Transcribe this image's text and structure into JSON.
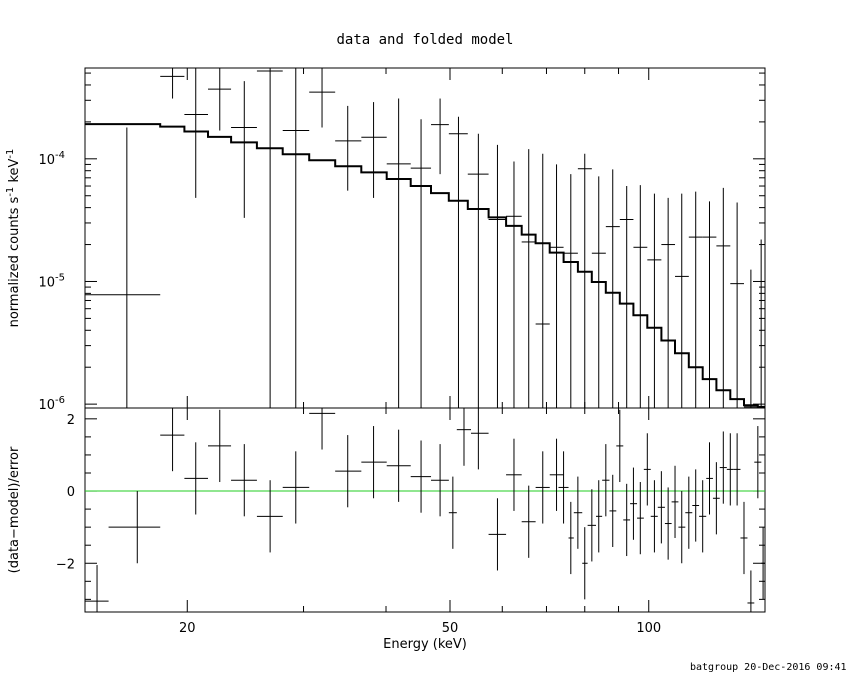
{
  "chart_data": [
    {
      "type": "scatter",
      "title": "data and folded model",
      "xlabel": "",
      "ylabel": "normalized counts s",
      "ylabel_sup1": "-1",
      "ylabel_mid": " keV",
      "ylabel_sup2": "-1",
      "xscale": "log",
      "yscale": "log",
      "xlim": [
        14,
        150
      ],
      "ylim": [
        9.3e-07,
        0.00055
      ],
      "yticks": [
        {
          "value": 0.0001,
          "label": "10",
          "exp": "-4"
        },
        {
          "value": 1e-05,
          "label": "10",
          "exp": "-5"
        },
        {
          "value": 1e-06,
          "label": "10",
          "exp": "-6"
        }
      ],
      "series": [
        {
          "role": "data",
          "points": [
            {
              "x": 16.2,
              "xlo": 14.0,
              "xhi": 18.2,
              "y": 7.8e-06,
              "ylo": 9.3e-07,
              "yhi": 0.00018
            },
            {
              "x": 19.0,
              "xlo": 18.2,
              "xhi": 19.8,
              "y": 0.00047,
              "ylo": 0.00031,
              "yhi": 0.00055
            },
            {
              "x": 20.6,
              "xlo": 19.8,
              "xhi": 21.5,
              "y": 0.00023,
              "ylo": 4.8e-05,
              "yhi": 0.00055
            },
            {
              "x": 22.4,
              "xlo": 21.5,
              "xhi": 23.3,
              "y": 0.00037,
              "ylo": 0.00017,
              "yhi": 0.00055
            },
            {
              "x": 24.4,
              "xlo": 23.3,
              "xhi": 25.5,
              "y": 0.00018,
              "ylo": 3.3e-05,
              "yhi": 0.00043
            },
            {
              "x": 26.7,
              "xlo": 25.5,
              "xhi": 27.9,
              "y": 0.00052,
              "ylo": 9.3e-07,
              "yhi": 0.00055
            },
            {
              "x": 29.2,
              "xlo": 27.9,
              "xhi": 30.6,
              "y": 0.00017,
              "ylo": 9.3e-07,
              "yhi": 0.00055
            },
            {
              "x": 32.0,
              "xlo": 30.6,
              "xhi": 33.5,
              "y": 0.00035,
              "ylo": 0.00018,
              "yhi": 0.00055
            },
            {
              "x": 35.0,
              "xlo": 33.5,
              "xhi": 36.7,
              "y": 0.00014,
              "ylo": 5.5e-05,
              "yhi": 0.00027
            },
            {
              "x": 38.3,
              "xlo": 36.7,
              "xhi": 40.1,
              "y": 0.00015,
              "ylo": 4.8e-05,
              "yhi": 0.00029
            },
            {
              "x": 41.8,
              "xlo": 40.1,
              "xhi": 43.6,
              "y": 9.1e-05,
              "ylo": 9.3e-07,
              "yhi": 0.00031
            },
            {
              "x": 45.2,
              "xlo": 43.6,
              "xhi": 46.8,
              "y": 8.4e-05,
              "ylo": 9.3e-07,
              "yhi": 0.00021
            },
            {
              "x": 48.3,
              "xlo": 46.8,
              "xhi": 49.8,
              "y": 0.00019,
              "ylo": 7.5e-05,
              "yhi": 0.00031
            },
            {
              "x": 51.5,
              "xlo": 49.8,
              "xhi": 53.2,
              "y": 0.00016,
              "ylo": 9.3e-07,
              "yhi": 0.00022
            },
            {
              "x": 55.2,
              "xlo": 53.2,
              "xhi": 57.2,
              "y": 7.5e-05,
              "ylo": 9.3e-07,
              "yhi": 0.00016
            },
            {
              "x": 59.0,
              "xlo": 57.2,
              "xhi": 60.8,
              "y": 3.2e-05,
              "ylo": 9.3e-07,
              "yhi": 0.00013
            },
            {
              "x": 62.5,
              "xlo": 60.8,
              "xhi": 64.2,
              "y": 3.4e-05,
              "ylo": 9.3e-07,
              "yhi": 9.5e-05
            },
            {
              "x": 65.8,
              "xlo": 64.2,
              "xhi": 67.4,
              "y": 2.1e-05,
              "ylo": 9.3e-07,
              "yhi": 0.00012
            },
            {
              "x": 69.1,
              "xlo": 67.4,
              "xhi": 70.8,
              "y": 4.5e-06,
              "ylo": 9.3e-07,
              "yhi": 0.00011
            },
            {
              "x": 72.5,
              "xlo": 70.8,
              "xhi": 74.3,
              "y": 1.9e-05,
              "ylo": 9.3e-07,
              "yhi": 9e-05
            },
            {
              "x": 76.2,
              "xlo": 74.3,
              "xhi": 78.1,
              "y": 1.7e-05,
              "ylo": 9.3e-07,
              "yhi": 7.5e-05
            },
            {
              "x": 80.0,
              "xlo": 78.1,
              "xhi": 82.0,
              "y": 8.3e-05,
              "ylo": 9.3e-07,
              "yhi": 0.00011
            },
            {
              "x": 84.0,
              "xlo": 82.0,
              "xhi": 86.1,
              "y": 1.7e-05,
              "ylo": 9.3e-07,
              "yhi": 7.2e-05
            },
            {
              "x": 88.2,
              "xlo": 86.1,
              "xhi": 90.4,
              "y": 2.8e-05,
              "ylo": 9.3e-07,
              "yhi": 8.2e-05
            },
            {
              "x": 92.6,
              "xlo": 90.4,
              "xhi": 94.8,
              "y": 3.2e-05,
              "ylo": 9.3e-07,
              "yhi": 6e-05
            },
            {
              "x": 97.1,
              "xlo": 94.8,
              "xhi": 99.5,
              "y": 1.9e-05,
              "ylo": 9.3e-07,
              "yhi": 6.1e-05
            },
            {
              "x": 102.0,
              "xlo": 99.5,
              "xhi": 104.5,
              "y": 1.5e-05,
              "ylo": 9.3e-07,
              "yhi": 5.2e-05
            },
            {
              "x": 107.0,
              "xlo": 104.5,
              "xhi": 109.6,
              "y": 2e-05,
              "ylo": 9.3e-07,
              "yhi": 4.8e-05
            },
            {
              "x": 112.2,
              "xlo": 109.6,
              "xhi": 115.0,
              "y": 1.1e-05,
              "ylo": 9.3e-07,
              "yhi": 5.2e-05
            },
            {
              "x": 117.8,
              "xlo": 115.0,
              "xhi": 120.7,
              "y": 2.3e-05,
              "ylo": 9.3e-07,
              "yhi": 5.4e-05
            },
            {
              "x": 123.6,
              "xlo": 120.7,
              "xhi": 126.6,
              "y": 2.3e-05,
              "ylo": 9.3e-07,
              "yhi": 4.5e-05
            },
            {
              "x": 129.7,
              "xlo": 126.6,
              "xhi": 132.9,
              "y": 1.95e-05,
              "ylo": 9.3e-07,
              "yhi": 5.8e-05
            },
            {
              "x": 136.1,
              "xlo": 132.9,
              "xhi": 139.4,
              "y": 9.6e-06,
              "ylo": 9.3e-07,
              "yhi": 4.4e-05
            },
            {
              "x": 142.8,
              "xlo": 139.4,
              "xhi": 146.3,
              "y": 9.5e-07,
              "ylo": 9.3e-07,
              "yhi": 1.25e-05
            },
            {
              "x": 148.0,
              "xlo": 146.3,
              "xhi": 150.0,
              "y": 9.5e-07,
              "ylo": 9.3e-07,
              "yhi": 2.2e-05
            }
          ]
        },
        {
          "role": "folded-model",
          "note": "stepped histogram",
          "edges": [
            14.0,
            18.2,
            19.8,
            21.5,
            23.3,
            25.5,
            27.9,
            30.6,
            33.5,
            36.7,
            40.1,
            43.6,
            46.8,
            49.8,
            53.2,
            57.2,
            60.8,
            64.2,
            67.4,
            70.8,
            74.3,
            78.1,
            82.0,
            86.1,
            90.4,
            94.8,
            99.5,
            104.5,
            109.6,
            115.0,
            120.7,
            126.6,
            132.9,
            139.4,
            146.3,
            150.0
          ],
          "values": [
            0.000192,
            0.000183,
            0.000167,
            0.000151,
            0.000136,
            0.000122,
            0.000109,
            9.75e-05,
            8.7e-05,
            7.75e-05,
            6.85e-05,
            6e-05,
            5.25e-05,
            4.55e-05,
            3.9e-05,
            3.33e-05,
            2.84e-05,
            2.41e-05,
            2.05e-05,
            1.72e-05,
            1.44e-05,
            1.2e-05,
            9.9e-06,
            8.1e-06,
            6.6e-06,
            5.3e-06,
            4.2e-06,
            3.3e-06,
            2.6e-06,
            2e-06,
            1.6e-06,
            1.3e-06,
            1.1e-06,
            9.8e-07,
            9.5e-07
          ]
        }
      ]
    },
    {
      "type": "scatter",
      "title": "",
      "xlabel": "Energy (keV)",
      "ylabel": "(data−model)/error",
      "xscale": "log",
      "yscale": "linear",
      "xlim": [
        14,
        150
      ],
      "ylim": [
        -3.35,
        2.3
      ],
      "xticks": [
        {
          "value": 20,
          "label": "20"
        },
        {
          "value": 50,
          "label": "50"
        },
        {
          "value": 100,
          "label": "100"
        }
      ],
      "yticks": [
        {
          "value": 2,
          "label": "2"
        },
        {
          "value": 0,
          "label": "0"
        },
        {
          "value": -2,
          "label": "−2"
        }
      ],
      "zero_line_color": "#22cc22",
      "series": [
        {
          "role": "residuals",
          "points": [
            {
              "x": 14.6,
              "xlo": 14.0,
              "xhi": 15.2,
              "y": -3.05,
              "ylo": -3.35,
              "yhi": -2.05
            },
            {
              "x": 16.8,
              "xlo": 15.2,
              "xhi": 18.2,
              "y": -1.0,
              "ylo": -2.0,
              "yhi": 0.0
            },
            {
              "x": 19.0,
              "xlo": 18.2,
              "xhi": 19.8,
              "y": 1.55,
              "ylo": 0.55,
              "yhi": 2.3
            },
            {
              "x": 20.6,
              "xlo": 19.8,
              "xhi": 21.5,
              "y": 0.35,
              "ylo": -0.65,
              "yhi": 1.35
            },
            {
              "x": 22.4,
              "xlo": 21.5,
              "xhi": 23.3,
              "y": 1.25,
              "ylo": 0.25,
              "yhi": 2.25
            },
            {
              "x": 24.4,
              "xlo": 23.3,
              "xhi": 25.5,
              "y": 0.3,
              "ylo": -0.7,
              "yhi": 1.3
            },
            {
              "x": 26.7,
              "xlo": 25.5,
              "xhi": 27.9,
              "y": -0.7,
              "ylo": -1.7,
              "yhi": 0.3
            },
            {
              "x": 29.2,
              "xlo": 27.9,
              "xhi": 30.6,
              "y": 0.1,
              "ylo": -0.9,
              "yhi": 1.1
            },
            {
              "x": 32.0,
              "xlo": 30.6,
              "xhi": 33.5,
              "y": 2.15,
              "ylo": 1.15,
              "yhi": 2.3
            },
            {
              "x": 35.0,
              "xlo": 33.5,
              "xhi": 36.7,
              "y": 0.55,
              "ylo": -0.45,
              "yhi": 1.55
            },
            {
              "x": 38.3,
              "xlo": 36.7,
              "xhi": 40.1,
              "y": 0.8,
              "ylo": -0.2,
              "yhi": 1.8
            },
            {
              "x": 41.8,
              "xlo": 40.1,
              "xhi": 43.6,
              "y": 0.7,
              "ylo": -0.3,
              "yhi": 1.7
            },
            {
              "x": 45.2,
              "xlo": 43.6,
              "xhi": 46.8,
              "y": 0.4,
              "ylo": -0.6,
              "yhi": 1.4
            },
            {
              "x": 48.3,
              "xlo": 46.8,
              "xhi": 49.8,
              "y": 0.3,
              "ylo": -0.7,
              "yhi": 1.3
            },
            {
              "x": 50.5,
              "xlo": 49.8,
              "xhi": 51.2,
              "y": -0.6,
              "ylo": -1.6,
              "yhi": 0.4
            },
            {
              "x": 52.5,
              "xlo": 51.2,
              "xhi": 53.8,
              "y": 1.7,
              "ylo": 0.7,
              "yhi": 2.3
            },
            {
              "x": 55.2,
              "xlo": 53.8,
              "xhi": 57.2,
              "y": 1.6,
              "ylo": 0.6,
              "yhi": 2.3
            },
            {
              "x": 59.0,
              "xlo": 57.2,
              "xhi": 60.8,
              "y": -1.2,
              "ylo": -2.2,
              "yhi": -0.2
            },
            {
              "x": 62.5,
              "xlo": 60.8,
              "xhi": 64.2,
              "y": 0.45,
              "ylo": -0.55,
              "yhi": 1.45
            },
            {
              "x": 65.8,
              "xlo": 64.2,
              "xhi": 67.4,
              "y": -0.85,
              "ylo": -1.85,
              "yhi": 0.15
            },
            {
              "x": 69.1,
              "xlo": 67.4,
              "xhi": 70.8,
              "y": 0.1,
              "ylo": -0.9,
              "yhi": 1.1
            },
            {
              "x": 72.5,
              "xlo": 70.8,
              "xhi": 74.3,
              "y": 0.45,
              "ylo": -0.55,
              "yhi": 1.45
            },
            {
              "x": 74.3,
              "xlo": 73.0,
              "xhi": 75.6,
              "y": 0.1,
              "ylo": -0.9,
              "yhi": 1.1
            },
            {
              "x": 76.2,
              "xlo": 75.6,
              "xhi": 77.0,
              "y": -1.3,
              "ylo": -2.3,
              "yhi": -0.3
            },
            {
              "x": 78.1,
              "xlo": 77.0,
              "xhi": 79.3,
              "y": -0.6,
              "ylo": -1.6,
              "yhi": 0.4
            },
            {
              "x": 80.0,
              "xlo": 79.3,
              "xhi": 80.8,
              "y": -2.0,
              "ylo": -3.0,
              "yhi": -1.0
            },
            {
              "x": 82.0,
              "xlo": 80.8,
              "xhi": 83.2,
              "y": -0.95,
              "ylo": -1.95,
              "yhi": 0.05
            },
            {
              "x": 84.0,
              "xlo": 83.2,
              "xhi": 85.0,
              "y": -0.7,
              "ylo": -1.7,
              "yhi": 0.3
            },
            {
              "x": 86.1,
              "xlo": 85.0,
              "xhi": 87.2,
              "y": 0.3,
              "ylo": -0.7,
              "yhi": 1.3
            },
            {
              "x": 88.2,
              "xlo": 87.2,
              "xhi": 89.3,
              "y": -0.55,
              "ylo": -1.55,
              "yhi": 0.45
            },
            {
              "x": 90.4,
              "xlo": 89.3,
              "xhi": 91.5,
              "y": 1.25,
              "ylo": 0.25,
              "yhi": 2.25
            },
            {
              "x": 92.6,
              "xlo": 91.5,
              "xhi": 93.7,
              "y": -0.8,
              "ylo": -1.8,
              "yhi": 0.2
            },
            {
              "x": 94.8,
              "xlo": 93.7,
              "xhi": 96.0,
              "y": -0.35,
              "ylo": -1.35,
              "yhi": 0.65
            },
            {
              "x": 97.1,
              "xlo": 96.0,
              "xhi": 98.3,
              "y": -0.75,
              "ylo": -1.75,
              "yhi": 0.25
            },
            {
              "x": 99.5,
              "xlo": 98.3,
              "xhi": 100.7,
              "y": 0.6,
              "ylo": -0.4,
              "yhi": 1.6
            },
            {
              "x": 102.0,
              "xlo": 100.7,
              "xhi": 103.2,
              "y": -0.7,
              "ylo": -1.7,
              "yhi": 0.3
            },
            {
              "x": 104.5,
              "xlo": 103.2,
              "xhi": 105.8,
              "y": -0.45,
              "ylo": -1.45,
              "yhi": 0.55
            },
            {
              "x": 107.0,
              "xlo": 105.8,
              "xhi": 108.3,
              "y": -0.9,
              "ylo": -1.9,
              "yhi": 0.1
            },
            {
              "x": 109.6,
              "xlo": 108.3,
              "xhi": 110.9,
              "y": -0.3,
              "ylo": -1.3,
              "yhi": 0.7
            },
            {
              "x": 112.2,
              "xlo": 110.9,
              "xhi": 113.6,
              "y": -1.0,
              "ylo": -2.0,
              "yhi": 0.0
            },
            {
              "x": 115.0,
              "xlo": 113.6,
              "xhi": 116.4,
              "y": -0.6,
              "ylo": -1.6,
              "yhi": 0.4
            },
            {
              "x": 117.8,
              "xlo": 116.4,
              "xhi": 119.2,
              "y": -0.4,
              "ylo": -1.4,
              "yhi": 0.6
            },
            {
              "x": 120.7,
              "xlo": 119.2,
              "xhi": 122.2,
              "y": -0.7,
              "ylo": -1.7,
              "yhi": 0.3
            },
            {
              "x": 123.6,
              "xlo": 122.2,
              "xhi": 125.1,
              "y": 0.35,
              "ylo": -0.65,
              "yhi": 1.35
            },
            {
              "x": 126.6,
              "xlo": 125.1,
              "xhi": 128.1,
              "y": -0.2,
              "ylo": -1.2,
              "yhi": 0.8
            },
            {
              "x": 129.7,
              "xlo": 128.1,
              "xhi": 131.3,
              "y": 0.65,
              "ylo": -0.35,
              "yhi": 1.65
            },
            {
              "x": 132.9,
              "xlo": 131.3,
              "xhi": 134.5,
              "y": 0.6,
              "ylo": -0.4,
              "yhi": 1.6
            },
            {
              "x": 136.1,
              "xlo": 134.5,
              "xhi": 137.7,
              "y": 0.6,
              "ylo": -0.4,
              "yhi": 1.6
            },
            {
              "x": 139.4,
              "xlo": 137.7,
              "xhi": 141.1,
              "y": -1.3,
              "ylo": -2.3,
              "yhi": -0.3
            },
            {
              "x": 142.8,
              "xlo": 141.1,
              "xhi": 144.5,
              "y": -3.1,
              "ylo": -3.35,
              "yhi": -2.2
            },
            {
              "x": 146.3,
              "xlo": 144.5,
              "xhi": 148.1,
              "y": 0.8,
              "ylo": -0.2,
              "yhi": 1.8
            },
            {
              "x": 149.0,
              "xlo": 148.1,
              "xhi": 150.0,
              "y": -2.0,
              "ylo": -3.0,
              "yhi": -1.0
            }
          ]
        }
      ]
    }
  ],
  "footer": "batgroup 20-Dec-2016 09:41"
}
